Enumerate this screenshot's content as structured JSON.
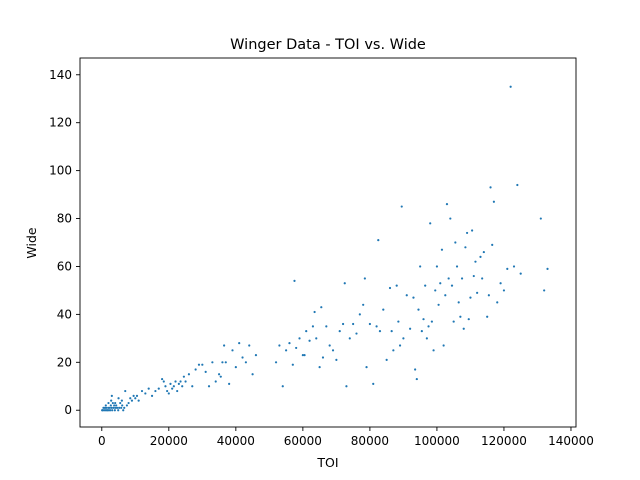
{
  "chart_data": {
    "type": "scatter",
    "title": "Winger Data - TOI vs. Wide",
    "xlabel": "TOI",
    "ylabel": "Wide",
    "xlim": [
      -6500,
      141500
    ],
    "ylim": [
      -7,
      147
    ],
    "xticks": [
      0,
      20000,
      40000,
      60000,
      80000,
      100000,
      120000,
      140000
    ],
    "xtick_labels": [
      "0",
      "20000",
      "40000",
      "60000",
      "80000",
      "100000",
      "120000",
      "140000"
    ],
    "yticks": [
      0,
      20,
      40,
      60,
      80,
      100,
      120,
      140
    ],
    "ytick_labels": [
      "0",
      "20",
      "40",
      "60",
      "80",
      "100",
      "120",
      "140"
    ],
    "grid": false,
    "legend": "none",
    "marker_color": "#1f77b4",
    "points": [
      [
        100,
        0
      ],
      [
        300,
        0
      ],
      [
        500,
        1
      ],
      [
        700,
        0
      ],
      [
        900,
        1
      ],
      [
        1100,
        0
      ],
      [
        1300,
        1
      ],
      [
        1500,
        0
      ],
      [
        1700,
        0
      ],
      [
        1900,
        1
      ],
      [
        2100,
        0
      ],
      [
        2300,
        1
      ],
      [
        2500,
        0
      ],
      [
        2700,
        2
      ],
      [
        2900,
        1
      ],
      [
        3100,
        0
      ],
      [
        3300,
        3
      ],
      [
        3500,
        1
      ],
      [
        3700,
        2
      ],
      [
        3900,
        0
      ],
      [
        4100,
        1
      ],
      [
        4300,
        2
      ],
      [
        4600,
        1
      ],
      [
        4900,
        0
      ],
      [
        5200,
        1
      ],
      [
        5500,
        3
      ],
      [
        5800,
        1
      ],
      [
        6100,
        2
      ],
      [
        6400,
        0
      ],
      [
        6700,
        1
      ],
      [
        1200,
        2
      ],
      [
        2000,
        3
      ],
      [
        2800,
        4
      ],
      [
        3000,
        6
      ],
      [
        4000,
        3
      ],
      [
        5000,
        5
      ],
      [
        6000,
        4
      ],
      [
        7000,
        8
      ],
      [
        7500,
        2
      ],
      [
        8000,
        3
      ],
      [
        8500,
        5
      ],
      [
        9000,
        4
      ],
      [
        9500,
        6
      ],
      [
        10000,
        5
      ],
      [
        10500,
        6
      ],
      [
        11000,
        4
      ],
      [
        12000,
        8
      ],
      [
        13000,
        7
      ],
      [
        14000,
        9
      ],
      [
        15000,
        6
      ],
      [
        16000,
        8
      ],
      [
        17000,
        9
      ],
      [
        18000,
        13
      ],
      [
        18500,
        12
      ],
      [
        19000,
        10
      ],
      [
        19500,
        8
      ],
      [
        20000,
        7
      ],
      [
        20500,
        11
      ],
      [
        21000,
        9
      ],
      [
        21500,
        10
      ],
      [
        22000,
        12
      ],
      [
        22500,
        8
      ],
      [
        23000,
        11
      ],
      [
        23500,
        12
      ],
      [
        24000,
        10
      ],
      [
        24500,
        14
      ],
      [
        25000,
        12
      ],
      [
        26000,
        15
      ],
      [
        27000,
        10
      ],
      [
        28000,
        17
      ],
      [
        29000,
        19
      ],
      [
        30000,
        19
      ],
      [
        31000,
        16
      ],
      [
        32000,
        10
      ],
      [
        33000,
        20
      ],
      [
        34000,
        12
      ],
      [
        35000,
        15
      ],
      [
        35500,
        14
      ],
      [
        36000,
        20
      ],
      [
        36500,
        27
      ],
      [
        37000,
        20
      ],
      [
        38000,
        11
      ],
      [
        39000,
        25
      ],
      [
        40000,
        18
      ],
      [
        41000,
        28
      ],
      [
        42000,
        22
      ],
      [
        43000,
        20
      ],
      [
        44000,
        27
      ],
      [
        45000,
        15
      ],
      [
        46000,
        23
      ],
      [
        52000,
        20
      ],
      [
        53000,
        27
      ],
      [
        54000,
        10
      ],
      [
        55000,
        25
      ],
      [
        56000,
        28
      ],
      [
        57000,
        19
      ],
      [
        57500,
        54
      ],
      [
        58000,
        26
      ],
      [
        59000,
        30
      ],
      [
        60000,
        23
      ],
      [
        60500,
        23
      ],
      [
        61000,
        33
      ],
      [
        62000,
        29
      ],
      [
        63000,
        35
      ],
      [
        63500,
        41
      ],
      [
        64000,
        30
      ],
      [
        65000,
        18
      ],
      [
        65500,
        43
      ],
      [
        66000,
        22
      ],
      [
        67000,
        35
      ],
      [
        68000,
        27
      ],
      [
        69000,
        25
      ],
      [
        70000,
        21
      ],
      [
        71000,
        33
      ],
      [
        72000,
        36
      ],
      [
        72500,
        53
      ],
      [
        73000,
        10
      ],
      [
        74000,
        30
      ],
      [
        75000,
        36
      ],
      [
        76000,
        32
      ],
      [
        77000,
        40
      ],
      [
        78000,
        44
      ],
      [
        78500,
        55
      ],
      [
        79000,
        18
      ],
      [
        80000,
        36
      ],
      [
        81000,
        11
      ],
      [
        82000,
        35
      ],
      [
        82500,
        71
      ],
      [
        83000,
        33
      ],
      [
        84000,
        42
      ],
      [
        85000,
        21
      ],
      [
        86000,
        51
      ],
      [
        86500,
        33
      ],
      [
        87000,
        25
      ],
      [
        88000,
        52
      ],
      [
        88500,
        37
      ],
      [
        89000,
        27
      ],
      [
        89500,
        85
      ],
      [
        90000,
        30
      ],
      [
        91000,
        48
      ],
      [
        92000,
        34
      ],
      [
        93000,
        47
      ],
      [
        93500,
        17
      ],
      [
        94000,
        13
      ],
      [
        94500,
        42
      ],
      [
        95000,
        60
      ],
      [
        95500,
        33
      ],
      [
        96000,
        38
      ],
      [
        96500,
        52
      ],
      [
        97000,
        30
      ],
      [
        97500,
        35
      ],
      [
        98000,
        78
      ],
      [
        98500,
        37
      ],
      [
        99000,
        25
      ],
      [
        99500,
        50
      ],
      [
        100000,
        60
      ],
      [
        100500,
        44
      ],
      [
        101000,
        53
      ],
      [
        101500,
        67
      ],
      [
        102000,
        27
      ],
      [
        102500,
        48
      ],
      [
        103000,
        86
      ],
      [
        103500,
        55
      ],
      [
        104000,
        80
      ],
      [
        104500,
        52
      ],
      [
        105000,
        37
      ],
      [
        105500,
        70
      ],
      [
        106000,
        60
      ],
      [
        106500,
        45
      ],
      [
        107000,
        39
      ],
      [
        107500,
        55
      ],
      [
        108000,
        34
      ],
      [
        108500,
        68
      ],
      [
        109000,
        74
      ],
      [
        109500,
        38
      ],
      [
        110000,
        47
      ],
      [
        110500,
        75
      ],
      [
        111000,
        56
      ],
      [
        111500,
        62
      ],
      [
        112000,
        49
      ],
      [
        113000,
        64
      ],
      [
        113500,
        55
      ],
      [
        114000,
        66
      ],
      [
        115000,
        39
      ],
      [
        115500,
        48
      ],
      [
        116000,
        93
      ],
      [
        116500,
        69
      ],
      [
        117000,
        87
      ],
      [
        118000,
        45
      ],
      [
        119000,
        53
      ],
      [
        120000,
        50
      ],
      [
        121000,
        59
      ],
      [
        122000,
        135
      ],
      [
        123000,
        60
      ],
      [
        124000,
        94
      ],
      [
        125000,
        57
      ],
      [
        131000,
        80
      ],
      [
        132000,
        50
      ],
      [
        133000,
        59
      ]
    ]
  }
}
